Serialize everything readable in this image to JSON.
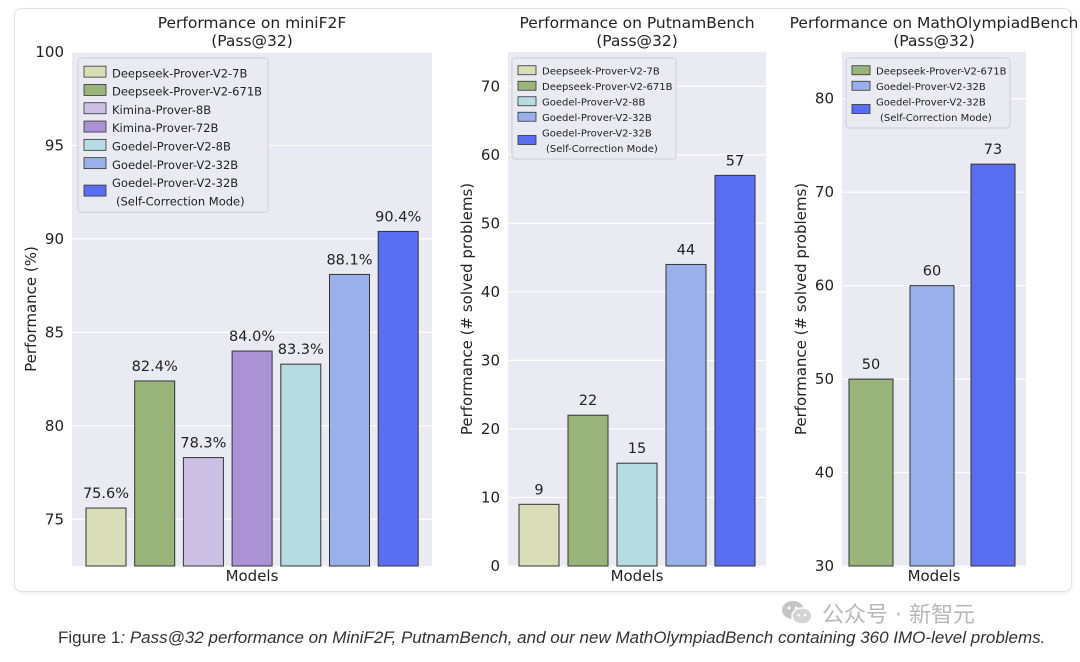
{
  "chart_data": [
    {
      "type": "bar",
      "title": "Performance on miniF2F",
      "subtitle": "(Pass@32)",
      "xlabel": "Models",
      "ylabel": "Performance (%)",
      "ylim": [
        72.5,
        100
      ],
      "yticks": [
        75,
        80,
        85,
        90,
        95,
        100
      ],
      "grid": true,
      "legend_position": "top-left",
      "series": [
        {
          "name": "Deepseek-Prover-V2-7B",
          "value": 75.6,
          "label": "75.6%",
          "color": "#dadeb8"
        },
        {
          "name": "Deepseek-Prover-V2-671B",
          "value": 82.4,
          "label": "82.4%",
          "color": "#9ab57c"
        },
        {
          "name": "Kimina-Prover-8B",
          "value": 78.3,
          "label": "78.3%",
          "color": "#ccc0e5"
        },
        {
          "name": "Kimina-Prover-72B",
          "value": 84.0,
          "label": "84.0%",
          "color": "#ab92d4"
        },
        {
          "name": "Goedel-Prover-V2-8B",
          "value": 83.3,
          "label": "83.3%",
          "color": "#b6dbe3"
        },
        {
          "name": "Goedel-Prover-V2-32B",
          "value": 88.1,
          "label": "88.1%",
          "color": "#9ab0ea"
        },
        {
          "name": "Goedel-Prover-V2-32B\n(Self-Correction Mode)",
          "value": 90.4,
          "label": "90.4%",
          "color": "#5a6ef2"
        }
      ]
    },
    {
      "type": "bar",
      "title": "Performance on PutnamBench",
      "subtitle": "(Pass@32)",
      "xlabel": "Models",
      "ylabel": "Performance (# solved problems)",
      "ylim": [
        0,
        75
      ],
      "yticks": [
        0,
        10,
        20,
        30,
        40,
        50,
        60,
        70
      ],
      "grid": true,
      "legend_position": "top-left",
      "series": [
        {
          "name": "Deepseek-Prover-V2-7B",
          "value": 9,
          "label": "9",
          "color": "#dadeb8"
        },
        {
          "name": "Deepseek-Prover-V2-671B",
          "value": 22,
          "label": "22",
          "color": "#9ab57c"
        },
        {
          "name": "Goedel-Prover-V2-8B",
          "value": 15,
          "label": "15",
          "color": "#b6dbe3"
        },
        {
          "name": "Goedel-Prover-V2-32B",
          "value": 44,
          "label": "44",
          "color": "#9ab0ea"
        },
        {
          "name": "Goedel-Prover-V2-32B\n(Self-Correction Mode)",
          "value": 57,
          "label": "57",
          "color": "#5a6ef2"
        }
      ]
    },
    {
      "type": "bar",
      "title": "Performance on MathOlympiadBench",
      "subtitle": "(Pass@32)",
      "xlabel": "Models",
      "ylabel": "Performance (# solved problems)",
      "ylim": [
        30,
        85
      ],
      "yticks": [
        30,
        40,
        50,
        60,
        70,
        80
      ],
      "grid": true,
      "legend_position": "top-left",
      "series": [
        {
          "name": "Deepseek-Prover-V2-671B",
          "value": 50,
          "label": "50",
          "color": "#9ab57c"
        },
        {
          "name": "Goedel-Prover-V2-32B",
          "value": 60,
          "label": "60",
          "color": "#9ab0ea"
        },
        {
          "name": "Goedel-Prover-V2-32B\n(Self-Correction Mode)",
          "value": 73,
          "label": "73",
          "color": "#5a6ef2"
        }
      ]
    }
  ],
  "caption": {
    "label": "Figure 1",
    "text": ": Pass@32 performance on MiniF2F, PutnamBench, and our new MathOlympiadBench containing 360 IMO-level problems."
  },
  "watermark": {
    "icon": "wechat-icon",
    "text": "公众号 · 新智元"
  }
}
